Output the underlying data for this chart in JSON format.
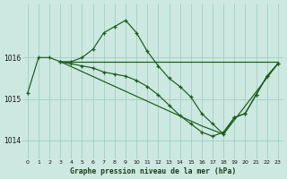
{
  "title": "Graphe pression niveau de la mer (hPa)",
  "bg": "#cce8e0",
  "grid_color": "#99ccbb",
  "lc": "#1a5c1a",
  "xlim": [
    -0.5,
    23.5
  ],
  "ylim": [
    1013.55,
    1017.3
  ],
  "yticks": [
    1014,
    1015,
    1016
  ],
  "xticks": [
    0,
    1,
    2,
    3,
    4,
    5,
    6,
    7,
    8,
    9,
    10,
    11,
    12,
    13,
    14,
    15,
    16,
    17,
    18,
    19,
    20,
    21,
    22,
    23
  ],
  "series_up": {
    "x": [
      0,
      1,
      2,
      3,
      4,
      5,
      6,
      7,
      8,
      9,
      10,
      11,
      12,
      13,
      14,
      15,
      16,
      17,
      18,
      19,
      20,
      21,
      22,
      23
    ],
    "y": [
      1015.15,
      1016.0,
      1016.0,
      1015.9,
      1015.9,
      1016.0,
      1016.2,
      1016.6,
      1016.75,
      1016.9,
      1016.6,
      1016.15,
      1015.8,
      1015.5,
      1015.3,
      1015.05,
      1014.65,
      1014.4,
      1014.15,
      1014.55,
      1014.65,
      1015.1,
      1015.55,
      1015.85
    ]
  },
  "series_down": {
    "x": [
      3,
      4,
      5,
      6,
      7,
      8,
      9,
      10,
      11,
      12,
      13,
      14,
      15,
      16,
      17,
      18,
      19,
      20,
      21,
      22,
      23
    ],
    "y": [
      1015.9,
      1015.85,
      1015.8,
      1015.75,
      1015.65,
      1015.6,
      1015.55,
      1015.45,
      1015.3,
      1015.1,
      1014.85,
      1014.6,
      1014.4,
      1014.2,
      1014.1,
      1014.2,
      1014.55,
      1014.65,
      1015.1,
      1015.55,
      1015.85
    ]
  },
  "flat_line": {
    "x": [
      3,
      23
    ],
    "y": [
      1015.9,
      1015.9
    ]
  },
  "diag_line": {
    "x": [
      3,
      16,
      18,
      23
    ],
    "y": [
      1015.9,
      1014.35,
      1014.15,
      1015.85
    ]
  }
}
